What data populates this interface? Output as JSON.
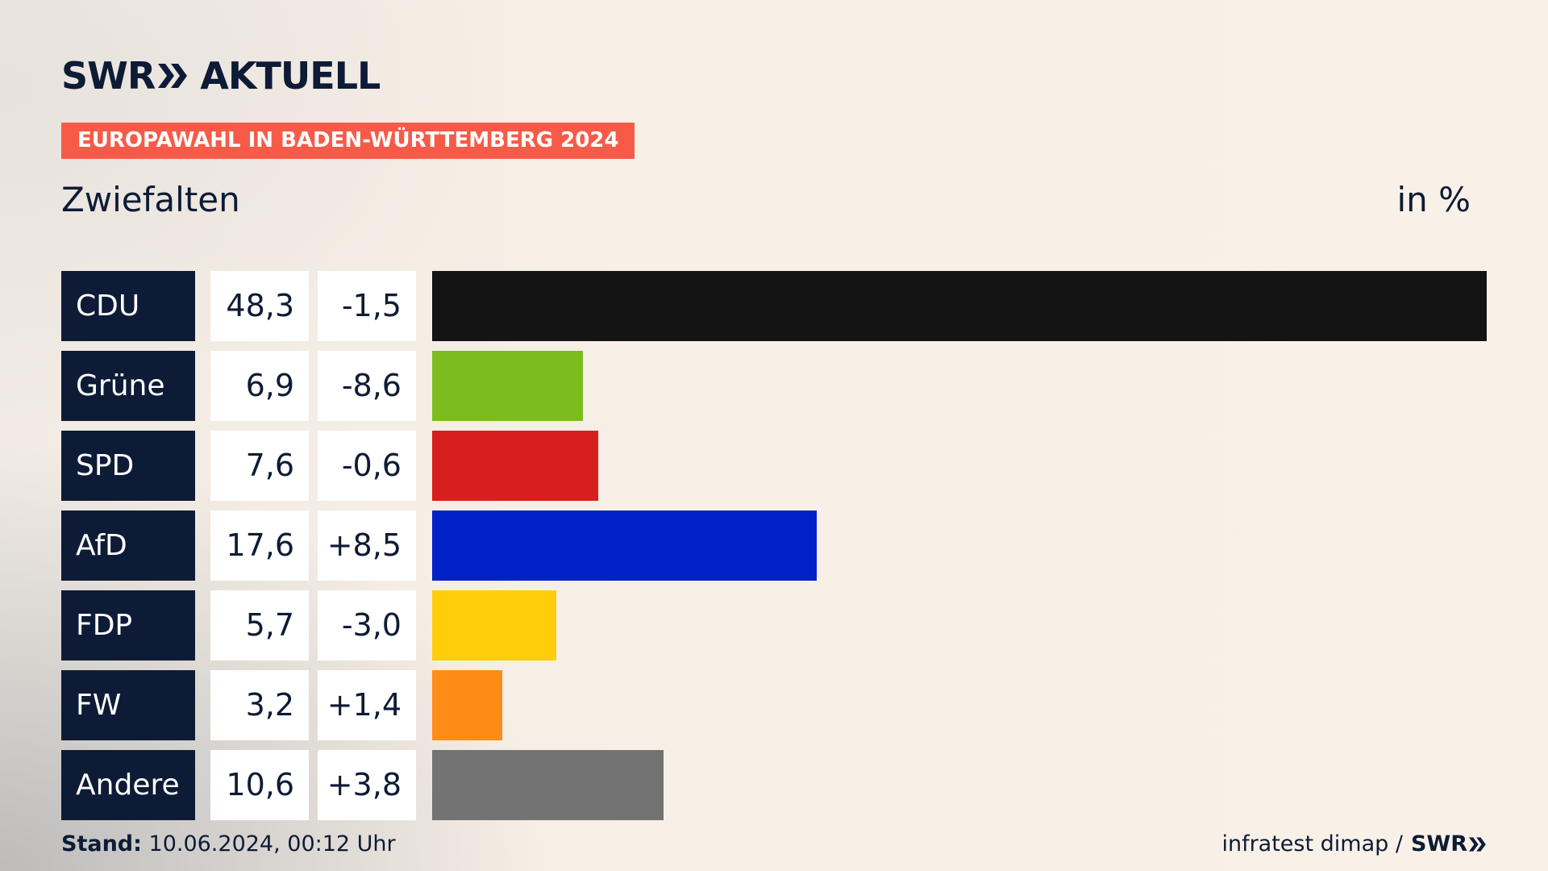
{
  "brand": {
    "left": "SWR",
    "right": "AKTUELL"
  },
  "topic": "EUROPAWAHL IN BADEN-WÜRTTEMBERG 2024",
  "place": "Zwiefalten",
  "unit": "in %",
  "chart_data": {
    "type": "bar",
    "orientation": "horizontal",
    "title": "Zwiefalten",
    "unit": "in %",
    "xlim": [
      0,
      48.3
    ],
    "categories": [
      "CDU",
      "Grüne",
      "SPD",
      "AfD",
      "FDP",
      "FW",
      "Andere"
    ],
    "values": [
      48.3,
      6.9,
      7.6,
      17.6,
      5.7,
      3.2,
      10.6
    ],
    "rows": [
      {
        "party": "CDU",
        "value": 48.3,
        "value_label": "48,3",
        "diff_label": "-1,5",
        "color": "#141414"
      },
      {
        "party": "Grüne",
        "value": 6.9,
        "value_label": "6,9",
        "diff_label": "-8,6",
        "color": "#7cbd1e"
      },
      {
        "party": "SPD",
        "value": 7.6,
        "value_label": "7,6",
        "diff_label": "-0,6",
        "color": "#d71f1d"
      },
      {
        "party": "AfD",
        "value": 17.6,
        "value_label": "17,6",
        "diff_label": "+8,5",
        "color": "#0021c8"
      },
      {
        "party": "FDP",
        "value": 5.7,
        "value_label": "5,7",
        "diff_label": "-3,0",
        "color": "#ffcd0a"
      },
      {
        "party": "FW",
        "value": 3.2,
        "value_label": "3,2",
        "diff_label": "+1,4",
        "color": "#ff8c17"
      },
      {
        "party": "Andere",
        "value": 10.6,
        "value_label": "10,6",
        "diff_label": "+3,8",
        "color": "#737373"
      }
    ]
  },
  "footer": {
    "stand_label": "Stand:",
    "stand_value": "10.06.2024, 00:12 Uhr",
    "source": "infratest dimap /",
    "source_brand": "SWR"
  }
}
